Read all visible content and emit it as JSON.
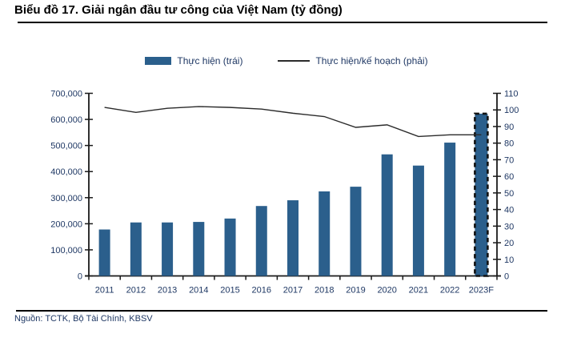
{
  "header": {
    "title": "Biểu đồ 17. Giải ngân đầu tư công của Việt Nam (tỷ đồng)"
  },
  "legend": {
    "bars_label": "Thực hiện (trái)",
    "line_label": "Thực hiện/kế hoạch (phải)"
  },
  "footer": {
    "source": "Nguồn: TCTK, Bộ Tài Chính, KBSV"
  },
  "colors": {
    "bar": "#2B5F8C",
    "forecast_outline": "#111111",
    "line": "#2b2b2b",
    "axis": "#1a1a1a",
    "tick_label": "#1f3864",
    "title": "#000000"
  },
  "chart_data": {
    "type": "bar",
    "subtype": "bar-line-combo",
    "title": "Biểu đồ 17. Giải ngân đầu tư công của Việt Nam (tỷ đồng)",
    "categories": [
      "2011",
      "2012",
      "2013",
      "2014",
      "2015",
      "2016",
      "2017",
      "2018",
      "2019",
      "2020",
      "2021",
      "2022",
      "2023F"
    ],
    "series": [
      {
        "name": "Thực hiện (trái)",
        "type": "bar",
        "axis": "left",
        "values": [
          178000,
          205000,
          205000,
          207000,
          220000,
          268000,
          290000,
          324000,
          342000,
          466000,
          423000,
          511000,
          622000
        ],
        "forecast_index": 12
      },
      {
        "name": "Thực hiện/kế hoạch (phải)",
        "type": "line",
        "axis": "right",
        "values": [
          101.5,
          98.5,
          101.0,
          102.0,
          101.5,
          100.5,
          98.0,
          96.0,
          89.5,
          91.0,
          84.0,
          85.0,
          85.0
        ]
      }
    ],
    "left_axis": {
      "min": 0,
      "max": 700000,
      "step": 100000,
      "tick_labels": [
        "0",
        "100,000",
        "200,000",
        "300,000",
        "400,000",
        "500,000",
        "600,000",
        "700,000"
      ]
    },
    "right_axis": {
      "min": 0,
      "max": 110,
      "step": 10,
      "tick_labels": [
        "0",
        "10",
        "20",
        "30",
        "40",
        "50",
        "60",
        "70",
        "80",
        "90",
        "100",
        "110"
      ]
    },
    "grid": false,
    "legend_position": "top"
  }
}
